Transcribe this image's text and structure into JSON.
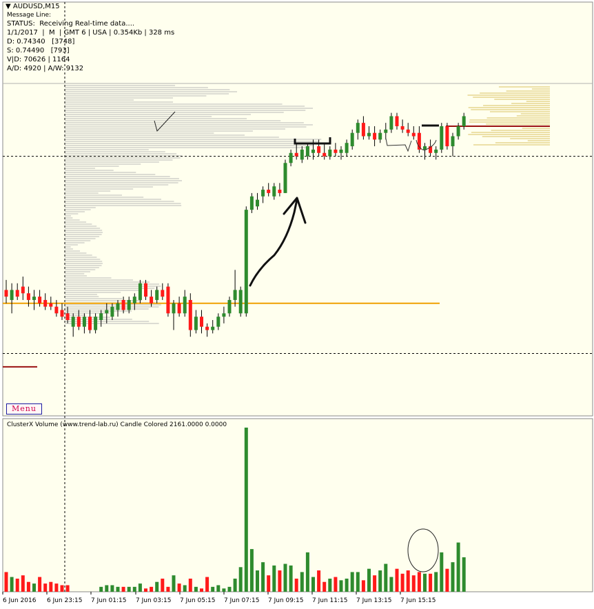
{
  "window": {
    "title": "AUDUSD,M15",
    "message_line": "Message Line:",
    "status_lines": [
      "STATUS:  Receiving Real-time data....",
      "1/1/2017  |  M  | GMT 6 | USA | 0.354Kb | 328 ms",
      "D: 0.74340   [3748]",
      "S: 0.74490   [793]",
      "V|D: 70626 | 1164",
      "A/D: 4920 | A/W: 9132"
    ]
  },
  "menu": {
    "label": "Menu"
  },
  "indicator": {
    "title": "ClusterX Volume (www.trend-lab.ru) Candle Colored 2161.0000 0.0000"
  },
  "colors": {
    "background": "#ffffff",
    "chart_bg": "#ffffee",
    "bull": "#2e8b2e",
    "bear": "#ff1a1a",
    "profile": "#b8b8b8",
    "profile_right": "#d8c060",
    "orange_level": "#f0a000",
    "dark_red_level": "#9a1010"
  },
  "chart_data": [
    {
      "type": "candlestick",
      "symbol": "AUDUSD",
      "timeframe": "M15",
      "ylim": [
        0.7318,
        0.7415
      ],
      "levels": {
        "dashed_top": 0.7393,
        "dashed_bottom": 0.7334,
        "orange": 0.7349,
        "dark_red_right": 0.7402,
        "dark_red_left": 0.733
      },
      "candles": [
        {
          "o": 0.7353,
          "h": 0.7356,
          "l": 0.7349,
          "c": 0.7351
        },
        {
          "o": 0.735,
          "h": 0.7355,
          "l": 0.7346,
          "c": 0.7353
        },
        {
          "o": 0.7353,
          "h": 0.7355,
          "l": 0.735,
          "c": 0.7351
        },
        {
          "o": 0.7354,
          "h": 0.7357,
          "l": 0.735,
          "c": 0.7352
        },
        {
          "o": 0.7352,
          "h": 0.7354,
          "l": 0.7348,
          "c": 0.735
        },
        {
          "o": 0.735,
          "h": 0.7353,
          "l": 0.7347,
          "c": 0.7351
        },
        {
          "o": 0.7351,
          "h": 0.7353,
          "l": 0.7348,
          "c": 0.7349
        },
        {
          "o": 0.735,
          "h": 0.7352,
          "l": 0.7347,
          "c": 0.7348
        },
        {
          "o": 0.7349,
          "h": 0.7351,
          "l": 0.7347,
          "c": 0.7348
        },
        {
          "o": 0.7348,
          "h": 0.735,
          "l": 0.7345,
          "c": 0.7346
        },
        {
          "o": 0.7347,
          "h": 0.7349,
          "l": 0.7344,
          "c": 0.7345
        },
        {
          "o": 0.7346,
          "h": 0.7348,
          "l": 0.7343,
          "c": 0.7344
        },
        {
          "o": 0.7342,
          "h": 0.7346,
          "l": 0.7339,
          "c": 0.7345
        },
        {
          "o": 0.7345,
          "h": 0.7347,
          "l": 0.7341,
          "c": 0.7342
        },
        {
          "o": 0.7342,
          "h": 0.7346,
          "l": 0.734,
          "c": 0.7345
        },
        {
          "o": 0.7345,
          "h": 0.7347,
          "l": 0.734,
          "c": 0.7341
        },
        {
          "o": 0.7341,
          "h": 0.7346,
          "l": 0.734,
          "c": 0.7345
        },
        {
          "o": 0.7344,
          "h": 0.7347,
          "l": 0.7342,
          "c": 0.7346
        },
        {
          "o": 0.7346,
          "h": 0.7349,
          "l": 0.7343,
          "c": 0.7347
        },
        {
          "o": 0.7345,
          "h": 0.7349,
          "l": 0.7344,
          "c": 0.7348
        },
        {
          "o": 0.7347,
          "h": 0.735,
          "l": 0.7345,
          "c": 0.7349
        },
        {
          "o": 0.735,
          "h": 0.7351,
          "l": 0.7346,
          "c": 0.7347
        },
        {
          "o": 0.7347,
          "h": 0.7351,
          "l": 0.7346,
          "c": 0.735
        },
        {
          "o": 0.7349,
          "h": 0.7352,
          "l": 0.7347,
          "c": 0.7351
        },
        {
          "o": 0.735,
          "h": 0.7356,
          "l": 0.7349,
          "c": 0.7355
        },
        {
          "o": 0.7355,
          "h": 0.7356,
          "l": 0.735,
          "c": 0.7351
        },
        {
          "o": 0.7351,
          "h": 0.7353,
          "l": 0.7348,
          "c": 0.7349
        },
        {
          "o": 0.735,
          "h": 0.7354,
          "l": 0.7349,
          "c": 0.7353
        },
        {
          "o": 0.7353,
          "h": 0.7355,
          "l": 0.735,
          "c": 0.7351
        },
        {
          "o": 0.7354,
          "h": 0.7355,
          "l": 0.7345,
          "c": 0.7346
        },
        {
          "o": 0.7346,
          "h": 0.735,
          "l": 0.7341,
          "c": 0.7349
        },
        {
          "o": 0.7349,
          "h": 0.7351,
          "l": 0.7345,
          "c": 0.7346
        },
        {
          "o": 0.7346,
          "h": 0.7353,
          "l": 0.7345,
          "c": 0.7351
        },
        {
          "o": 0.735,
          "h": 0.7352,
          "l": 0.7339,
          "c": 0.7341
        },
        {
          "o": 0.7341,
          "h": 0.7347,
          "l": 0.734,
          "c": 0.7345
        },
        {
          "o": 0.7345,
          "h": 0.7347,
          "l": 0.734,
          "c": 0.7342
        },
        {
          "o": 0.7342,
          "h": 0.7343,
          "l": 0.7339,
          "c": 0.7341
        },
        {
          "o": 0.7341,
          "h": 0.7344,
          "l": 0.734,
          "c": 0.7342
        },
        {
          "o": 0.7342,
          "h": 0.7346,
          "l": 0.7341,
          "c": 0.7345
        },
        {
          "o": 0.7345,
          "h": 0.7348,
          "l": 0.7343,
          "c": 0.7346
        },
        {
          "o": 0.7346,
          "h": 0.7351,
          "l": 0.7345,
          "c": 0.735
        },
        {
          "o": 0.735,
          "h": 0.7359,
          "l": 0.7348,
          "c": 0.7353
        },
        {
          "o": 0.7346,
          "h": 0.7354,
          "l": 0.7345,
          "c": 0.7353
        },
        {
          "o": 0.7346,
          "h": 0.7378,
          "l": 0.7345,
          "c": 0.7377
        },
        {
          "o": 0.7377,
          "h": 0.7382,
          "l": 0.7376,
          "c": 0.7381
        },
        {
          "o": 0.7378,
          "h": 0.7382,
          "l": 0.7377,
          "c": 0.738
        },
        {
          "o": 0.7381,
          "h": 0.7384,
          "l": 0.7379,
          "c": 0.7383
        },
        {
          "o": 0.7383,
          "h": 0.7385,
          "l": 0.7381,
          "c": 0.7382
        },
        {
          "o": 0.7381,
          "h": 0.7385,
          "l": 0.738,
          "c": 0.7384
        },
        {
          "o": 0.7383,
          "h": 0.7385,
          "l": 0.7381,
          "c": 0.7382
        },
        {
          "o": 0.7382,
          "h": 0.7392,
          "l": 0.7382,
          "c": 0.7391
        },
        {
          "o": 0.7391,
          "h": 0.7395,
          "l": 0.739,
          "c": 0.7394
        },
        {
          "o": 0.7394,
          "h": 0.7397,
          "l": 0.7392,
          "c": 0.7393
        },
        {
          "o": 0.7392,
          "h": 0.7396,
          "l": 0.7391,
          "c": 0.7395
        },
        {
          "o": 0.7393,
          "h": 0.7397,
          "l": 0.7392,
          "c": 0.7396
        },
        {
          "o": 0.7394,
          "h": 0.7398,
          "l": 0.7392,
          "c": 0.7395
        },
        {
          "o": 0.7396,
          "h": 0.7398,
          "l": 0.7393,
          "c": 0.7394
        },
        {
          "o": 0.7394,
          "h": 0.7397,
          "l": 0.7392,
          "c": 0.7393
        },
        {
          "o": 0.7393,
          "h": 0.7396,
          "l": 0.7392,
          "c": 0.7395
        },
        {
          "o": 0.7395,
          "h": 0.7397,
          "l": 0.7393,
          "c": 0.7394
        },
        {
          "o": 0.7394,
          "h": 0.7396,
          "l": 0.7392,
          "c": 0.7395
        },
        {
          "o": 0.7394,
          "h": 0.7398,
          "l": 0.7393,
          "c": 0.7397
        },
        {
          "o": 0.7396,
          "h": 0.7401,
          "l": 0.7395,
          "c": 0.74
        },
        {
          "o": 0.74,
          "h": 0.7404,
          "l": 0.7398,
          "c": 0.7403
        },
        {
          "o": 0.7403,
          "h": 0.7405,
          "l": 0.7398,
          "c": 0.7399
        },
        {
          "o": 0.7399,
          "h": 0.7402,
          "l": 0.7398,
          "c": 0.74
        },
        {
          "o": 0.74,
          "h": 0.7402,
          "l": 0.7396,
          "c": 0.7398
        },
        {
          "o": 0.7398,
          "h": 0.7401,
          "l": 0.7397,
          "c": 0.74
        },
        {
          "o": 0.74,
          "h": 0.7403,
          "l": 0.7398,
          "c": 0.7401
        },
        {
          "o": 0.7401,
          "h": 0.7406,
          "l": 0.74,
          "c": 0.7405
        },
        {
          "o": 0.7405,
          "h": 0.7406,
          "l": 0.7401,
          "c": 0.7402
        },
        {
          "o": 0.7402,
          "h": 0.7404,
          "l": 0.74,
          "c": 0.7401
        },
        {
          "o": 0.7401,
          "h": 0.7403,
          "l": 0.7399,
          "c": 0.74
        },
        {
          "o": 0.74,
          "h": 0.7402,
          "l": 0.7398,
          "c": 0.7399
        },
        {
          "o": 0.74,
          "h": 0.7402,
          "l": 0.7394,
          "c": 0.7395
        },
        {
          "o": 0.7395,
          "h": 0.7397,
          "l": 0.7392,
          "c": 0.7396
        },
        {
          "o": 0.7396,
          "h": 0.7398,
          "l": 0.7393,
          "c": 0.7394
        },
        {
          "o": 0.7394,
          "h": 0.7396,
          "l": 0.7392,
          "c": 0.7395
        },
        {
          "o": 0.7395,
          "h": 0.7403,
          "l": 0.7394,
          "c": 0.7402
        },
        {
          "o": 0.7402,
          "h": 0.7403,
          "l": 0.7395,
          "c": 0.7396
        },
        {
          "o": 0.7396,
          "h": 0.74,
          "l": 0.7393,
          "c": 0.7399
        },
        {
          "o": 0.7399,
          "h": 0.7403,
          "l": 0.7398,
          "c": 0.7402
        },
        {
          "o": 0.7402,
          "h": 0.7406,
          "l": 0.7401,
          "c": 0.7405
        }
      ],
      "volume": [
        12,
        9,
        8,
        10,
        6,
        5,
        9,
        5,
        6,
        5,
        4,
        4,
        0,
        0,
        0,
        0,
        0,
        3,
        4,
        4,
        3,
        3,
        3,
        3,
        5,
        2,
        3,
        6,
        8,
        3,
        10,
        5,
        4,
        8,
        3,
        2,
        9,
        3,
        4,
        2,
        3,
        8,
        15,
        100,
        26,
        13,
        18,
        10,
        16,
        13,
        17,
        16,
        8,
        12,
        24,
        9,
        13,
        6,
        8,
        9,
        7,
        8,
        12,
        12,
        7,
        14,
        10,
        13,
        17,
        9,
        14,
        11,
        13,
        10,
        12,
        11,
        11,
        12,
        24,
        14,
        18,
        30,
        21
      ]
    }
  ],
  "x_axis": {
    "ticks": [
      "6 Jun 2016",
      "6 Jun 23:15",
      "7 Jun 01:15",
      "7 Jun 03:15",
      "7 Jun 05:15",
      "7 Jun 07:15",
      "7 Jun 09:15",
      "7 Jun 11:15",
      "7 Jun 13:15",
      "7 Jun 15:15"
    ]
  }
}
